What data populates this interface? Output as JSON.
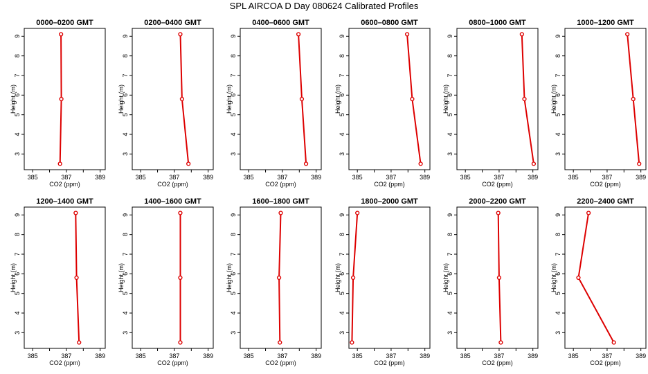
{
  "title": "SPL AIRCOA D  Day 080624  Calibrated Profiles",
  "colors": {
    "series": "#dd0000",
    "axis": "#000000"
  },
  "chart_data": [
    {
      "type": "line",
      "title": "0000–0200 GMT",
      "xlabel": "CO2 (ppm)",
      "ylabel": "Height (m)",
      "xlim": [
        384.5,
        389.3
      ],
      "ylim": [
        2.2,
        9.4
      ],
      "xticks": [
        "385",
        "387",
        "389"
      ],
      "yticks": [
        "3",
        "4",
        "5",
        "6",
        "7",
        "8",
        "9"
      ],
      "x": [
        386.62,
        386.7,
        386.68
      ],
      "y": [
        2.5,
        5.8,
        9.1
      ]
    },
    {
      "type": "line",
      "title": "0200–0400 GMT",
      "xlabel": "CO2 (ppm)",
      "ylabel": "Height (m)",
      "xlim": [
        384.5,
        389.3
      ],
      "ylim": [
        2.2,
        9.4
      ],
      "xticks": [
        "385",
        "387",
        "389"
      ],
      "yticks": [
        "3",
        "4",
        "5",
        "6",
        "7",
        "8",
        "9"
      ],
      "x": [
        387.83,
        387.45,
        387.35
      ],
      "y": [
        2.5,
        5.8,
        9.1
      ]
    },
    {
      "type": "line",
      "title": "0400–0600 GMT",
      "xlabel": "CO2 (ppm)",
      "ylabel": "Height (m)",
      "xlim": [
        384.5,
        389.3
      ],
      "ylim": [
        2.2,
        9.4
      ],
      "xticks": [
        "385",
        "387",
        "389"
      ],
      "yticks": [
        "3",
        "4",
        "5",
        "6",
        "7",
        "8",
        "9"
      ],
      "x": [
        388.4,
        388.15,
        387.95
      ],
      "y": [
        2.5,
        5.8,
        9.1
      ]
    },
    {
      "type": "line",
      "title": "0600–0800 GMT",
      "xlabel": "CO2 (ppm)",
      "ylabel": "Height (m)",
      "xlim": [
        384.5,
        389.3
      ],
      "ylim": [
        2.2,
        9.4
      ],
      "xticks": [
        "385",
        "387",
        "389"
      ],
      "yticks": [
        "3",
        "4",
        "5",
        "6",
        "7",
        "8",
        "9"
      ],
      "x": [
        388.75,
        388.25,
        387.95
      ],
      "y": [
        2.5,
        5.8,
        9.1
      ]
    },
    {
      "type": "line",
      "title": "0800–1000 GMT",
      "xlabel": "CO2 (ppm)",
      "ylabel": "Height (m)",
      "xlim": [
        384.5,
        389.3
      ],
      "ylim": [
        2.2,
        9.4
      ],
      "xticks": [
        "385",
        "387",
        "389"
      ],
      "yticks": [
        "3",
        "4",
        "5",
        "6",
        "7",
        "8",
        "9"
      ],
      "x": [
        389.05,
        388.5,
        388.35
      ],
      "y": [
        2.5,
        5.8,
        9.1
      ]
    },
    {
      "type": "line",
      "title": "1000–1200 GMT",
      "xlabel": "CO2 (ppm)",
      "ylabel": "Height (m)",
      "xlim": [
        384.5,
        389.3
      ],
      "ylim": [
        2.2,
        9.4
      ],
      "xticks": [
        "385",
        "387",
        "389"
      ],
      "yticks": [
        "3",
        "4",
        "5",
        "6",
        "7",
        "8",
        "9"
      ],
      "x": [
        388.9,
        388.55,
        388.2
      ],
      "y": [
        2.5,
        5.8,
        9.1
      ]
    },
    {
      "type": "line",
      "title": "1200–1400 GMT",
      "xlabel": "CO2 (ppm)",
      "ylabel": "Height (m)",
      "xlim": [
        384.5,
        389.3
      ],
      "ylim": [
        2.2,
        9.4
      ],
      "xticks": [
        "385",
        "387",
        "389"
      ],
      "yticks": [
        "3",
        "4",
        "5",
        "6",
        "7",
        "8",
        "9"
      ],
      "x": [
        387.75,
        387.6,
        387.55
      ],
      "y": [
        2.5,
        5.8,
        9.1
      ]
    },
    {
      "type": "line",
      "title": "1400–1600 GMT",
      "xlabel": "CO2 (ppm)",
      "ylabel": "Height (m)",
      "xlim": [
        384.5,
        389.3
      ],
      "ylim": [
        2.2,
        9.4
      ],
      "xticks": [
        "385",
        "387",
        "389"
      ],
      "yticks": [
        "3",
        "4",
        "5",
        "6",
        "7",
        "8",
        "9"
      ],
      "x": [
        387.35,
        387.35,
        387.35
      ],
      "y": [
        2.5,
        5.8,
        9.1
      ]
    },
    {
      "type": "line",
      "title": "1600–1800 GMT",
      "xlabel": "CO2 (ppm)",
      "ylabel": "Height (m)",
      "xlim": [
        384.5,
        389.3
      ],
      "ylim": [
        2.2,
        9.4
      ],
      "xticks": [
        "385",
        "387",
        "389"
      ],
      "yticks": [
        "3",
        "4",
        "5",
        "6",
        "7",
        "8",
        "9"
      ],
      "x": [
        386.85,
        386.8,
        386.9
      ],
      "y": [
        2.5,
        5.8,
        9.1
      ]
    },
    {
      "type": "line",
      "title": "1800–2000 GMT",
      "xlabel": "CO2 (ppm)",
      "ylabel": "Height (m)",
      "xlim": [
        384.5,
        389.3
      ],
      "ylim": [
        2.2,
        9.4
      ],
      "xticks": [
        "385",
        "387",
        "389"
      ],
      "yticks": [
        "3",
        "4",
        "5",
        "6",
        "7",
        "8",
        "9"
      ],
      "x": [
        384.68,
        384.75,
        385.0
      ],
      "y": [
        2.5,
        5.8,
        9.1
      ]
    },
    {
      "type": "line",
      "title": "2000–2200 GMT",
      "xlabel": "CO2 (ppm)",
      "ylabel": "Height (m)",
      "xlim": [
        384.5,
        389.3
      ],
      "ylim": [
        2.2,
        9.4
      ],
      "xticks": [
        "385",
        "387",
        "389"
      ],
      "yticks": [
        "3",
        "4",
        "5",
        "6",
        "7",
        "8",
        "9"
      ],
      "x": [
        387.1,
        387.0,
        386.95
      ],
      "y": [
        2.5,
        5.8,
        9.1
      ]
    },
    {
      "type": "line",
      "title": "2200–2400 GMT",
      "xlabel": "CO2 (ppm)",
      "ylabel": "Height (m)",
      "xlim": [
        384.5,
        389.3
      ],
      "ylim": [
        2.2,
        9.4
      ],
      "xticks": [
        "385",
        "387",
        "389"
      ],
      "yticks": [
        "3",
        "4",
        "5",
        "6",
        "7",
        "8",
        "9"
      ],
      "x": [
        387.4,
        385.3,
        385.9
      ],
      "y": [
        2.5,
        5.8,
        9.1
      ]
    }
  ]
}
